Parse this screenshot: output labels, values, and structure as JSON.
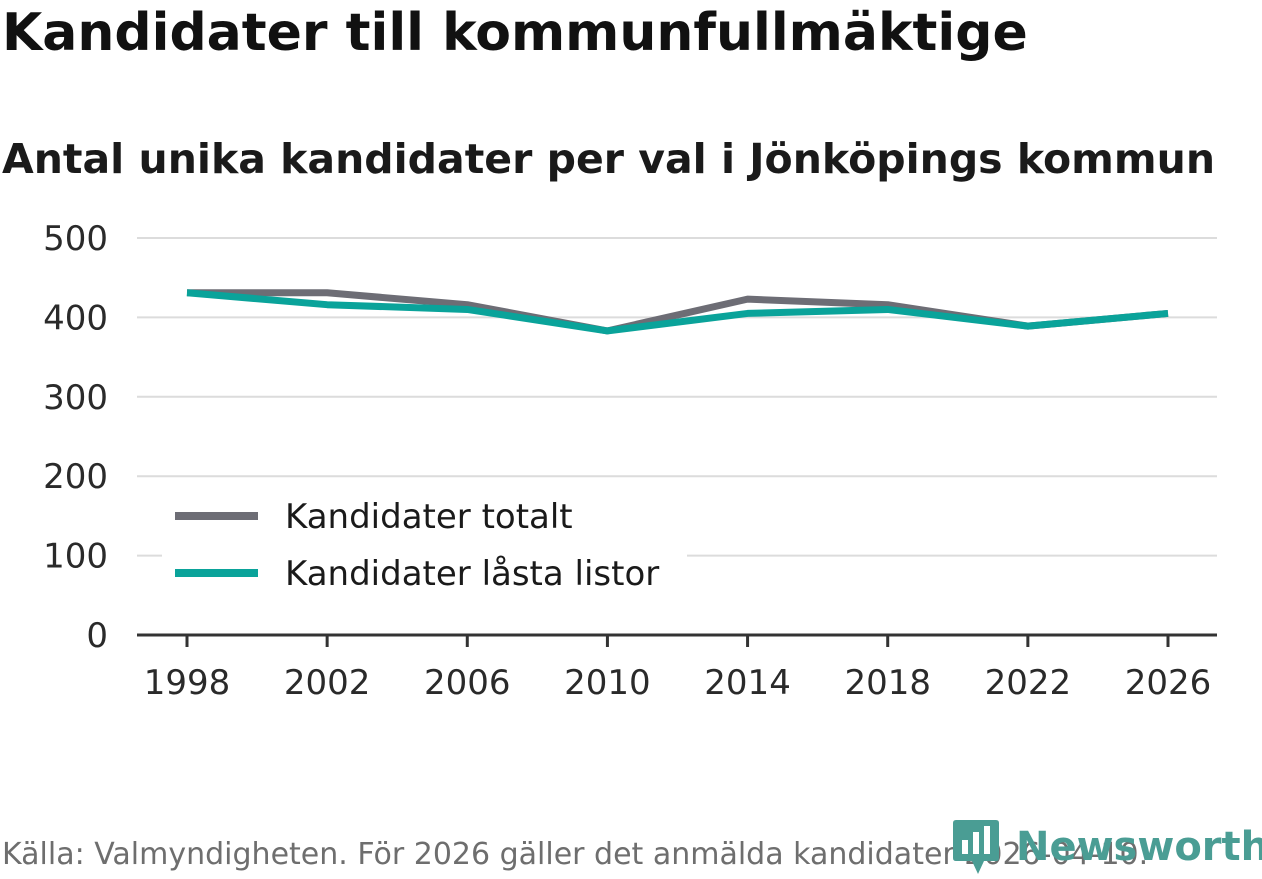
{
  "title": "Kandidater till kommunfullmäktige",
  "subtitle": "Antal unika kandidater per val i Jönköpings kommun",
  "source": "Källa: Valmyndigheten. För 2026 gäller det anmälda kandidater 2026-04-10.",
  "brand": {
    "name": "Newsworthy",
    "color": "#4a9d94",
    "icon": "newsworthy-logo-icon"
  },
  "chart_data": {
    "type": "line",
    "title": "Kandidater till kommunfullmäktige",
    "subtitle": "Antal unika kandidater per val i Jönköpings kommun",
    "xlabel": "",
    "ylabel": "",
    "x": [
      1998,
      2002,
      2006,
      2010,
      2014,
      2018,
      2022,
      2026
    ],
    "x_ticks": [
      "1998",
      "2002",
      "2006",
      "2010",
      "2014",
      "2018",
      "2022",
      "2026"
    ],
    "y_ticks": [
      "0",
      "100",
      "200",
      "300",
      "400",
      "500"
    ],
    "ylim": [
      0,
      500
    ],
    "grid": true,
    "legend_position": "bottom-left",
    "series": [
      {
        "name": "Kandidater totalt",
        "color": "#6d6d75",
        "values": [
          431,
          431,
          416,
          383,
          423,
          416,
          389,
          405
        ]
      },
      {
        "name": "Kandidater låsta listor",
        "color": "#0aa39a",
        "values": [
          431,
          416,
          410,
          383,
          405,
          410,
          389,
          405
        ]
      }
    ]
  }
}
